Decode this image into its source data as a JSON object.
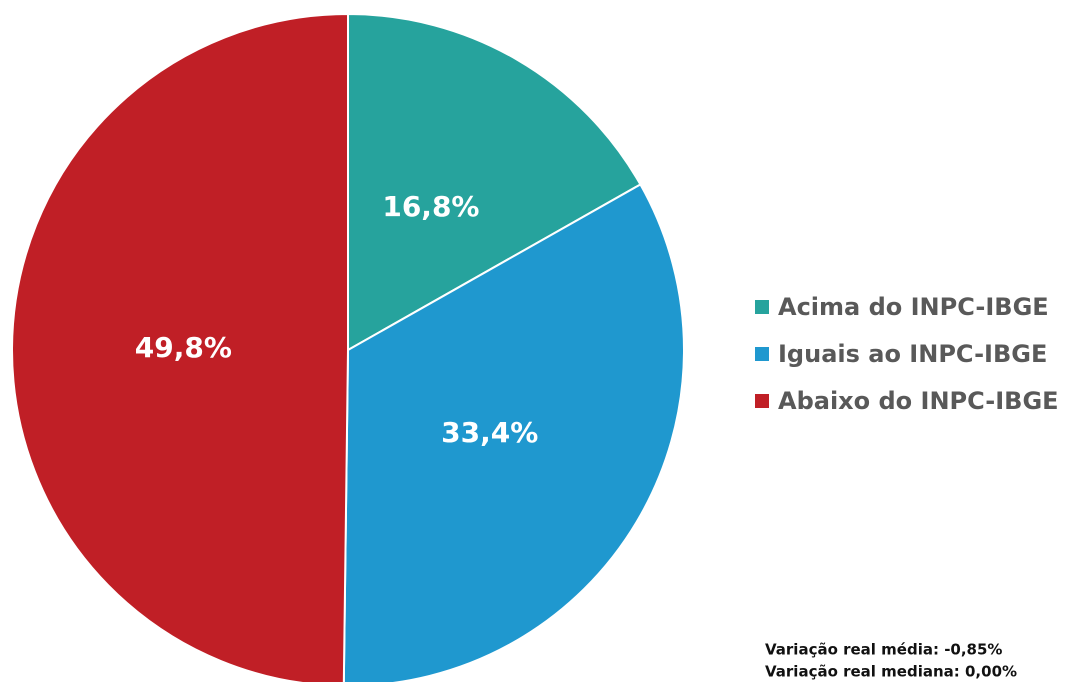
{
  "chart_data": {
    "type": "pie",
    "categories": [
      "Acima do INPC-IBGE",
      "Iguais ao INPC-IBGE",
      "Abaixo do INPC-IBGE"
    ],
    "values": [
      16.8,
      33.4,
      49.8
    ],
    "value_labels": [
      "16,8%",
      "33,4%",
      "49,8%"
    ],
    "colors": [
      "#26a39d",
      "#1f98cf",
      "#c01f26"
    ],
    "legend": "right",
    "annotations": [
      "Variação real média: -0,85%",
      "Variação real mediana: 0,00%"
    ]
  }
}
